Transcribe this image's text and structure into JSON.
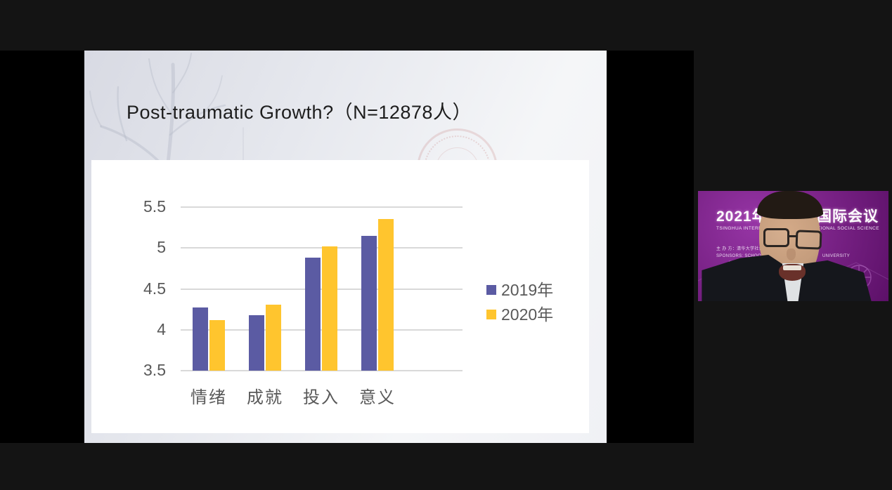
{
  "window": {
    "background": "#141414",
    "stage_background": "#000000"
  },
  "slide": {
    "title": "Post-traumatic Growth?（N=12878人）"
  },
  "chart_data": {
    "type": "bar",
    "title": "",
    "categories": [
      "情绪",
      "成就",
      "投入",
      "意义"
    ],
    "series": [
      {
        "name": "2019年",
        "color": "#5b5ba3",
        "values": [
          4.27,
          4.18,
          4.88,
          5.15
        ]
      },
      {
        "name": "2020年",
        "color": "#ffc52e",
        "values": [
          4.12,
          4.31,
          5.02,
          5.35
        ]
      }
    ],
    "ylim": [
      3.5,
      5.5
    ],
    "yticks": [
      5.5,
      5.0,
      4.5,
      4.0,
      3.5
    ],
    "ytick_labels": [
      "5.5",
      "5",
      "4.5",
      "4",
      "3.5"
    ],
    "grid": true,
    "gridline_color": "#d9d9d9",
    "axis_label_color": "#595959",
    "legend_position": "right"
  },
  "webcam": {
    "banner_line1_left": "2021年",
    "banner_line1_right": "国际会议",
    "banner_line2_left": "TSINGHUA INTERNATION",
    "banner_line2_right": "TIONAL SOCIAL SCIENCE",
    "sponsor_line1": "主 办 方：清华大学社会科学学",
    "sponsor_line2": "SPONSORS: SCHOOL OF SOCIAL S",
    "sponsor_line2_right": "UNIVERSITY",
    "sponsor_line3": "INSTITUTE OF COMPUT"
  }
}
